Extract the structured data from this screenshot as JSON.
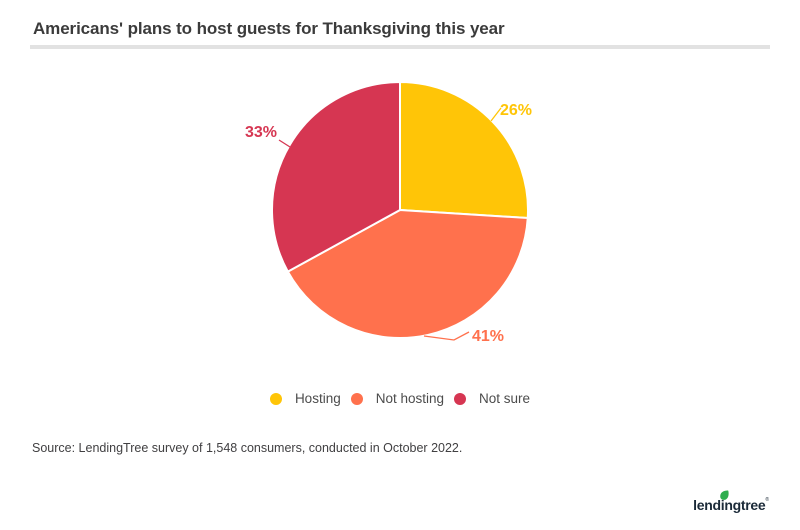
{
  "header": {
    "title": "Americans' plans to host guests for Thanksgiving this year"
  },
  "chart_data": {
    "type": "pie",
    "title": "Americans' plans to host guests for Thanksgiving this year",
    "unit": "%",
    "start_angle_deg": 0,
    "direction": "clockwise",
    "legend_position": "bottom",
    "slice_border_color": "#ffffff",
    "slices": [
      {
        "label": "Hosting",
        "value": 26,
        "display": "26%",
        "color": "#FFC507"
      },
      {
        "label": "Not hosting",
        "value": 41,
        "display": "41%",
        "color": "#FF714D"
      },
      {
        "label": "Not sure",
        "value": 33,
        "display": "33%",
        "color": "#D63652"
      }
    ]
  },
  "source": {
    "text": "Source: LendingTree survey of 1,548 consumers, conducted in October 2022."
  },
  "branding": {
    "logo_text": "lendingtree",
    "trademark": "®",
    "logo_color": "#1B2A38",
    "leaf_color": "#2EAE4E"
  }
}
